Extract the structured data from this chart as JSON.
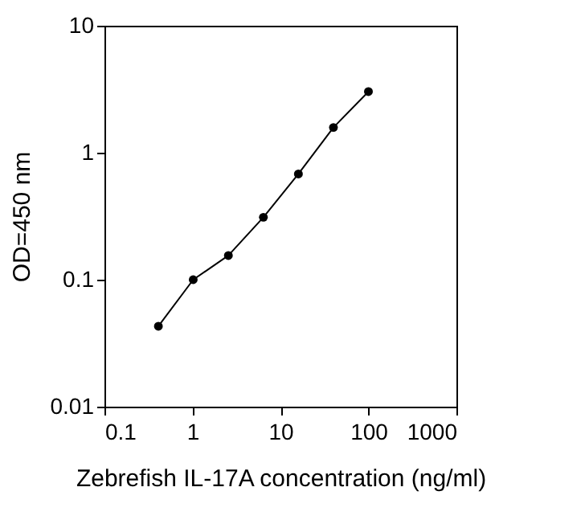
{
  "chart_data": {
    "type": "line",
    "xlabel": "Zebrefish IL-17A concentration (ng/ml)",
    "ylabel": "OD=450 nm",
    "x": [
      0.41,
      1.02,
      2.56,
      6.4,
      16,
      40,
      100
    ],
    "series": [
      {
        "color": "#000000",
        "values": [
          0.043,
          0.1,
          0.155,
          0.31,
          0.68,
          1.58,
          3.03
        ]
      }
    ],
    "log": "xy",
    "xlim": [
      0.1,
      1000
    ],
    "ylim": [
      0.01,
      10
    ],
    "xticks": [
      0.1,
      1,
      10,
      100,
      1000
    ],
    "yticks": [
      0.01,
      0.1,
      1,
      10
    ],
    "marker": "circle",
    "line_style": "solid",
    "grid": false,
    "legend": false
  }
}
